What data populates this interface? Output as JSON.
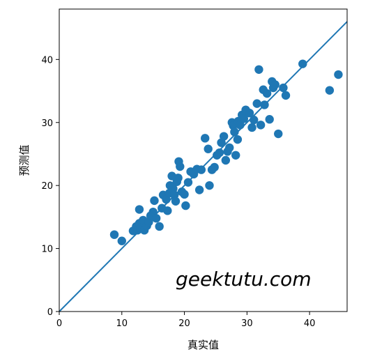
{
  "chart_data": {
    "type": "scatter",
    "xlabel": "真实值",
    "ylabel": "预测值",
    "xlim": [
      0,
      46
    ],
    "ylim": [
      0,
      48
    ],
    "xticks": [
      0,
      10,
      20,
      30,
      40
    ],
    "yticks": [
      0,
      10,
      20,
      30,
      40
    ],
    "grid": false,
    "point_color": "#1f77b4",
    "reference_line": {
      "kind": "y=x",
      "color": "#1f77b4"
    },
    "watermark": "geektutu.com",
    "points": [
      [
        8.8,
        12.2
      ],
      [
        10.0,
        11.2
      ],
      [
        11.8,
        12.8
      ],
      [
        12.3,
        13.5
      ],
      [
        12.5,
        12.9
      ],
      [
        12.8,
        16.2
      ],
      [
        12.8,
        14.0
      ],
      [
        13.0,
        13.2
      ],
      [
        13.4,
        14.5
      ],
      [
        13.6,
        12.9
      ],
      [
        14.0,
        13.6
      ],
      [
        14.3,
        14.2
      ],
      [
        14.6,
        15.2
      ],
      [
        15.0,
        15.8
      ],
      [
        15.2,
        17.6
      ],
      [
        15.5,
        14.8
      ],
      [
        16.0,
        13.5
      ],
      [
        16.4,
        16.4
      ],
      [
        16.6,
        18.5
      ],
      [
        17.1,
        17.8
      ],
      [
        17.3,
        16.0
      ],
      [
        17.6,
        18.8
      ],
      [
        17.7,
        20.0
      ],
      [
        18.0,
        21.5
      ],
      [
        18.2,
        19.5
      ],
      [
        18.4,
        18.5
      ],
      [
        18.6,
        17.5
      ],
      [
        18.8,
        20.6
      ],
      [
        19.1,
        23.8
      ],
      [
        19.3,
        23.0
      ],
      [
        19.0,
        21.2
      ],
      [
        19.6,
        19.0
      ],
      [
        20.0,
        18.6
      ],
      [
        20.2,
        16.8
      ],
      [
        20.6,
        20.5
      ],
      [
        21.0,
        22.2
      ],
      [
        21.5,
        21.8
      ],
      [
        22.0,
        22.6
      ],
      [
        22.4,
        19.3
      ],
      [
        22.7,
        22.5
      ],
      [
        23.3,
        27.5
      ],
      [
        23.8,
        25.8
      ],
      [
        24.0,
        20.0
      ],
      [
        24.4,
        22.5
      ],
      [
        24.8,
        22.9
      ],
      [
        25.2,
        24.8
      ],
      [
        25.6,
        25.2
      ],
      [
        25.9,
        26.8
      ],
      [
        26.3,
        27.8
      ],
      [
        26.6,
        24.0
      ],
      [
        26.9,
        25.4
      ],
      [
        27.2,
        26.0
      ],
      [
        27.6,
        30.0
      ],
      [
        27.8,
        29.5
      ],
      [
        28.0,
        28.5
      ],
      [
        28.2,
        24.8
      ],
      [
        28.5,
        27.3
      ],
      [
        28.6,
        30.2
      ],
      [
        28.9,
        29.6
      ],
      [
        29.2,
        31.2
      ],
      [
        29.5,
        30.6
      ],
      [
        29.8,
        32.0
      ],
      [
        30.4,
        31.5
      ],
      [
        30.8,
        29.2
      ],
      [
        31.1,
        30.4
      ],
      [
        31.6,
        33.0
      ],
      [
        31.9,
        38.4
      ],
      [
        32.2,
        29.6
      ],
      [
        32.6,
        35.2
      ],
      [
        32.8,
        32.8
      ],
      [
        33.2,
        34.6
      ],
      [
        33.6,
        30.5
      ],
      [
        34.0,
        36.5
      ],
      [
        34.2,
        35.5
      ],
      [
        34.5,
        36.0
      ],
      [
        35.0,
        28.2
      ],
      [
        35.8,
        35.5
      ],
      [
        36.2,
        34.3
      ],
      [
        38.9,
        39.3
      ],
      [
        43.2,
        35.1
      ],
      [
        44.6,
        37.6
      ]
    ]
  }
}
